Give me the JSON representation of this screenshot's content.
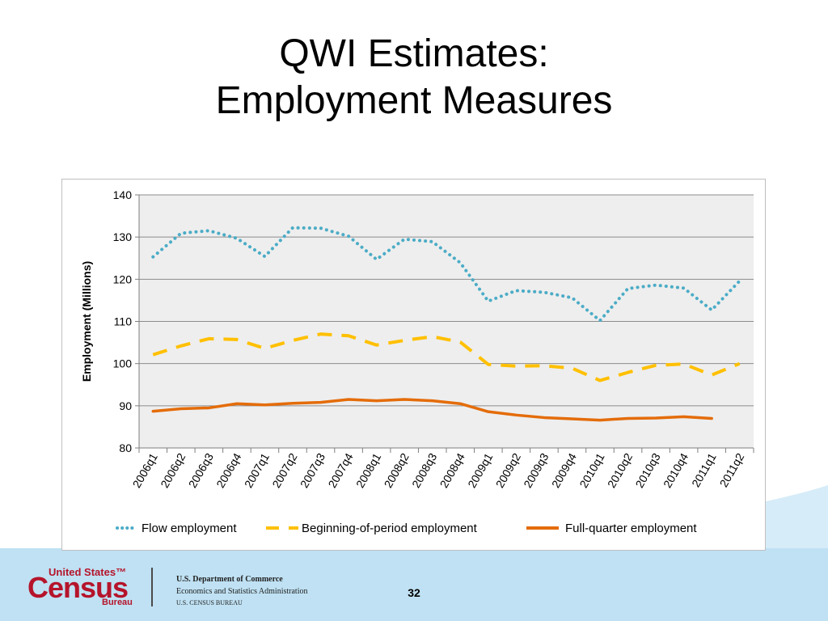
{
  "slide": {
    "title_line1": "QWI Estimates:",
    "title_line2": "Employment Measures",
    "page_number": "32"
  },
  "footer": {
    "logo_top": "United States™",
    "logo_main": "Census",
    "logo_bottom": "Bureau",
    "dept_line1": "U.S. Department of Commerce",
    "dept_line2": "Economics and Statistics Administration",
    "dept_line3": "U.S. CENSUS BUREAU"
  },
  "colors": {
    "flow": "#4bacc6",
    "beginning": "#ffc000",
    "full_quarter": "#e46c0a",
    "plot_bg": "#eeeeee",
    "gridline": "#8c8c8c",
    "footer_band": "#bfe1f3",
    "logo_red": "#b5142b"
  },
  "chart_data": {
    "type": "line",
    "title": "",
    "xlabel": "",
    "ylabel": "Employment (Millions)",
    "ylim": [
      80,
      140
    ],
    "yticks": [
      80,
      90,
      100,
      110,
      120,
      130,
      140
    ],
    "grid": true,
    "legend_position": "bottom",
    "categories": [
      "2006q1",
      "2006q2",
      "2006q3",
      "2006q4",
      "2007q1",
      "2007q2",
      "2007q3",
      "2007q4",
      "2008q1",
      "2008q2",
      "2008q3",
      "2008q4",
      "2009q1",
      "2009q2",
      "2009q3",
      "2009q4",
      "2010q1",
      "2010q2",
      "2010q3",
      "2010q4",
      "2011q1",
      "2011q2"
    ],
    "series": [
      {
        "name": "Flow employment",
        "style": "dotted",
        "color": "#4bacc6",
        "values": [
          125.3,
          130.9,
          131.5,
          129.7,
          125.4,
          132.2,
          132.1,
          130.2,
          124.7,
          129.5,
          128.9,
          123.9,
          114.8,
          117.3,
          116.9,
          115.6,
          110.2,
          117.8,
          118.6,
          117.9,
          112.7,
          119.6
        ]
      },
      {
        "name": "Beginning-of-period employment",
        "style": "dashed",
        "color": "#ffc000",
        "values": [
          102.1,
          104.2,
          105.9,
          105.7,
          103.6,
          105.5,
          107.0,
          106.6,
          104.4,
          105.5,
          106.4,
          105.1,
          99.8,
          99.4,
          99.5,
          98.9,
          96.0,
          97.9,
          99.6,
          99.9,
          97.3,
          100.0
        ]
      },
      {
        "name": "Full-quarter employment",
        "style": "solid",
        "color": "#e46c0a",
        "values": [
          88.7,
          89.3,
          89.5,
          90.5,
          90.2,
          90.6,
          90.8,
          91.5,
          91.2,
          91.5,
          91.2,
          90.5,
          88.6,
          87.8,
          87.2,
          86.9,
          86.6,
          87.0,
          87.1,
          87.4,
          87.0,
          null
        ]
      }
    ]
  }
}
